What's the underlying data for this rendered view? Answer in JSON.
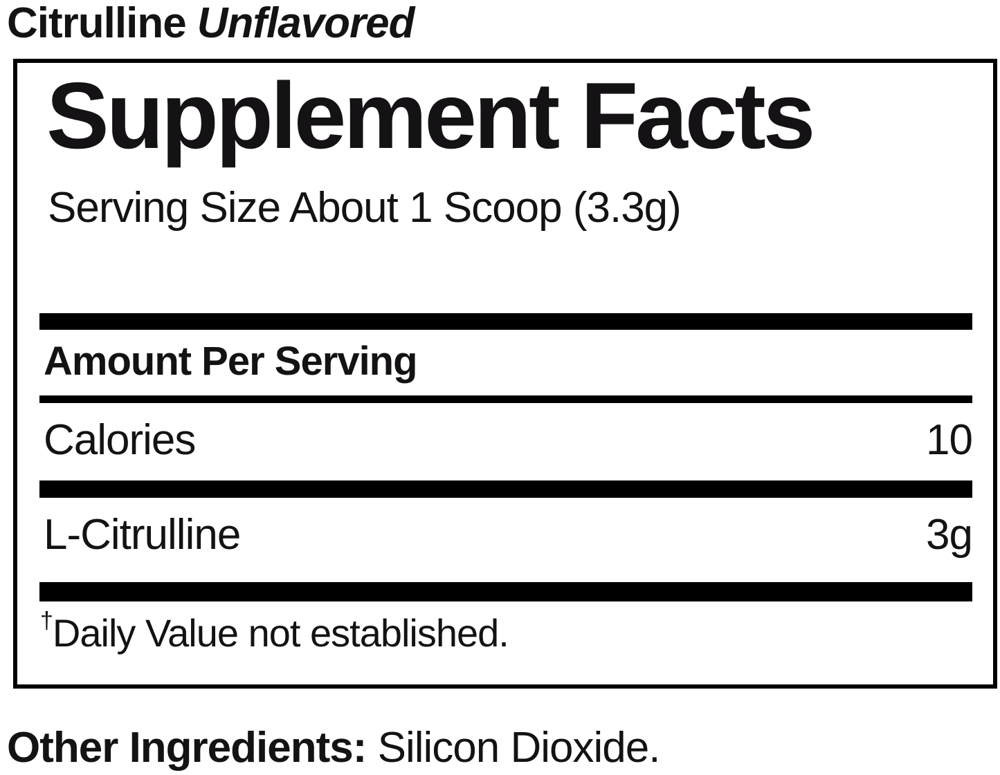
{
  "header": {
    "product_name": "Citrulline",
    "flavor": "Unflavored"
  },
  "panel": {
    "heading": "Supplement Facts",
    "serving_size": "Serving Size About 1 Scoop (3.3g)",
    "amount_per_serving_label": "Amount Per Serving",
    "rows": [
      {
        "name": "Calories",
        "amount": "10"
      },
      {
        "name": "L-Citrulline",
        "amount": "3g"
      }
    ],
    "footnote_symbol": "†",
    "footnote_text": "Daily Value not established."
  },
  "other_ingredients": {
    "label": "Other Ingredients:",
    "value": "Silicon Dioxide."
  },
  "colors": {
    "text": "#141214",
    "rule": "#000000",
    "background": "#ffffff"
  }
}
